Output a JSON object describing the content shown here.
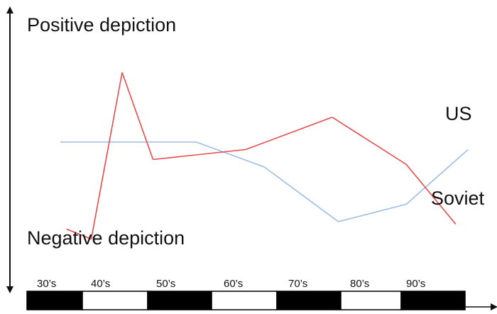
{
  "chart_data": {
    "type": "line",
    "y_top_label": "Positive depiction",
    "y_bottom_label": "Negative depiction",
    "categories": [
      "30’s",
      "40’s",
      "50’s",
      "60’s",
      "70’s",
      "80’s",
      "90’s"
    ],
    "series": [
      {
        "name": "US",
        "color": "#9dbde6",
        "points": [
          {
            "x": 1930,
            "y": 0.6
          },
          {
            "x": 1952,
            "y": 0.6
          },
          {
            "x": 1963,
            "y": 0.5
          },
          {
            "x": 1975,
            "y": 0.28
          },
          {
            "x": 1986,
            "y": 0.35
          },
          {
            "x": 1996,
            "y": 0.57
          }
        ]
      },
      {
        "name": "Soviet",
        "color": "#e84a4a",
        "points": [
          {
            "x": 1931,
            "y": 0.25
          },
          {
            "x": 1935,
            "y": 0.21
          },
          {
            "x": 1940,
            "y": 0.88
          },
          {
            "x": 1945,
            "y": 0.53
          },
          {
            "x": 1960,
            "y": 0.57
          },
          {
            "x": 1974,
            "y": 0.7
          },
          {
            "x": 1986,
            "y": 0.51
          },
          {
            "x": 1994,
            "y": 0.27
          }
        ]
      }
    ],
    "timeline_blocks": [
      "black",
      "white",
      "black",
      "white",
      "black",
      "white",
      "black"
    ]
  }
}
